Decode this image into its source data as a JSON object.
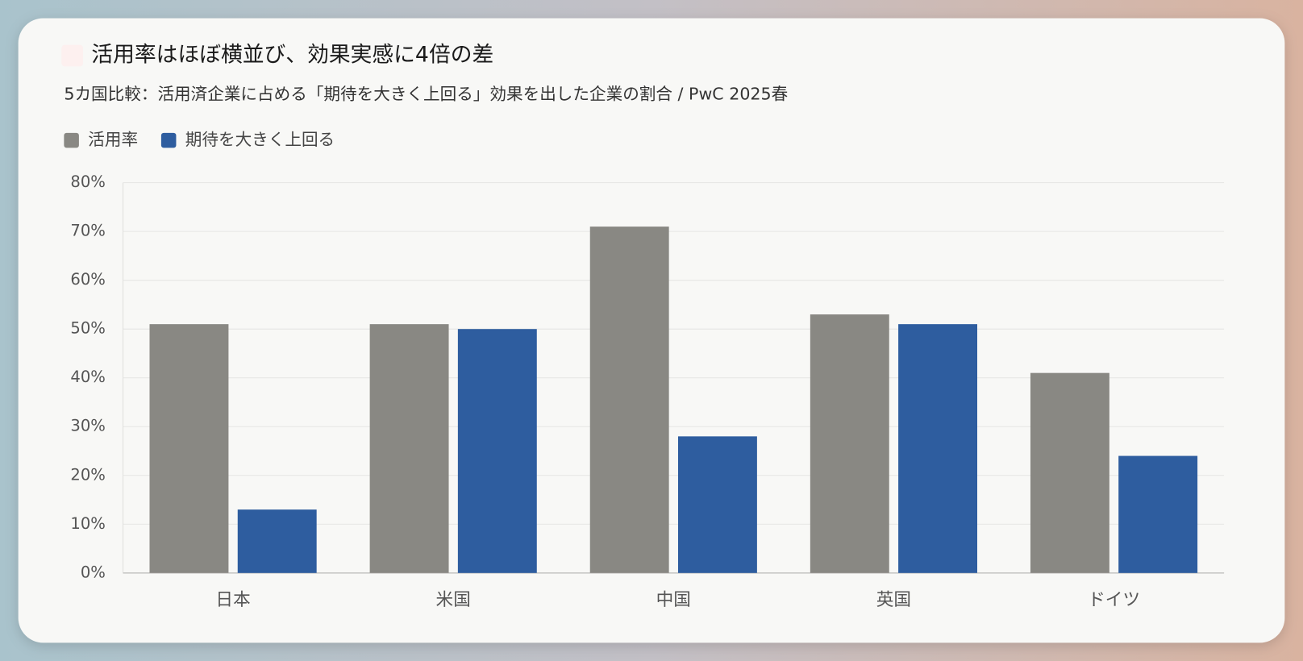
{
  "chart_data": {
    "type": "bar",
    "title": "活用率はほぼ横並び、効果実感に4倍の差",
    "subtitle": "5カ国比較：活用済企業に占める「期待を大きく上回る」効果を出した企業の割合 / PwC 2025春",
    "categories": [
      "日本",
      "米国",
      "中国",
      "英国",
      "ドイツ"
    ],
    "series": [
      {
        "name": "活用率",
        "color": "#898883",
        "values": [
          51,
          51,
          71,
          53,
          41
        ]
      },
      {
        "name": "期待を大きく上回る",
        "color": "#2e5d9f",
        "values": [
          13,
          50,
          28,
          51,
          24
        ]
      }
    ],
    "ylim": [
      0,
      80
    ],
    "yticks": [
      {
        "value": 0,
        "label": "0%"
      },
      {
        "value": 10,
        "label": "10%"
      },
      {
        "value": 20,
        "label": "20%"
      },
      {
        "value": 30,
        "label": "30%"
      },
      {
        "value": 40,
        "label": "40%"
      },
      {
        "value": 50,
        "label": "50%"
      },
      {
        "value": 60,
        "label": "60%"
      },
      {
        "value": 70,
        "label": "70%"
      },
      {
        "value": 80,
        "label": "80%"
      }
    ],
    "grid": true
  }
}
